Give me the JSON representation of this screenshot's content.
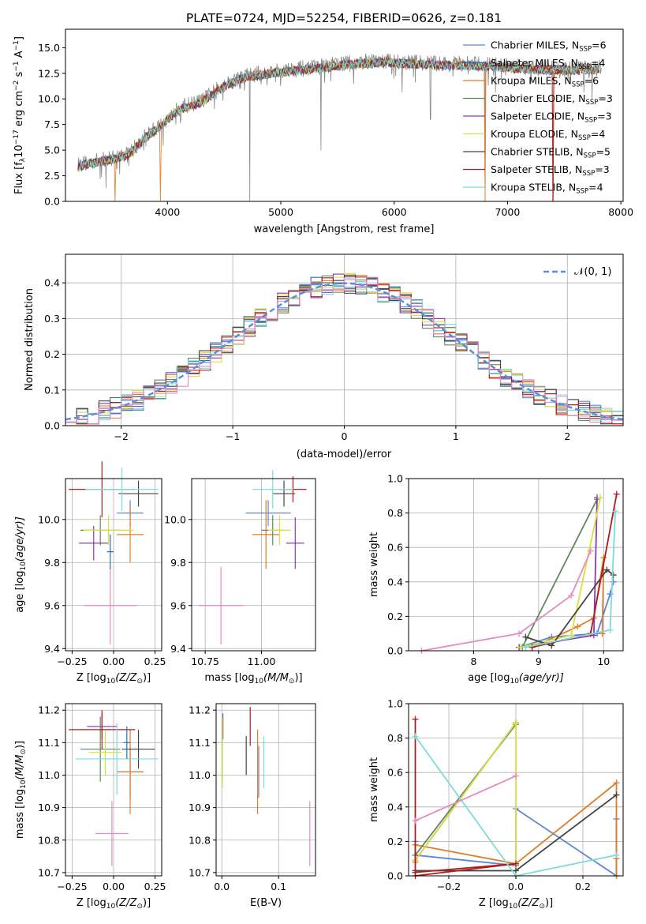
{
  "title": "PLATE=0724, MJD=52254, FIBERID=0626, z=0.181",
  "colors": {
    "chabrier_miles": "#5b86d6",
    "salpeter_miles": "#2a6fb0",
    "kroupa_miles": "#e07b26",
    "chabrier_elodie": "#5c8a5c",
    "salpeter_elodie": "#8e3aad",
    "kroupa_elodie": "#d9e03c",
    "chabrier_stelib": "#444444",
    "salpeter_stelib": "#b01c1c",
    "kroupa_stelib": "#7fdada",
    "pink": "#e68ac0",
    "data": "#888888",
    "normal": "#5b8fd9"
  },
  "legend": {
    "labels": [
      "Chabrier MILES, N",
      "Salpeter MILES, N",
      "Kroupa MILES, N",
      "Chabrier ELODIE, N",
      "Salpeter ELODIE, N",
      "Kroupa ELODIE, N",
      "Chabrier STELIB, N",
      "Salpeter STELIB, N",
      "Kroupa STELIB, N"
    ],
    "sub": "SSP",
    "counts": [
      "=6",
      "=4",
      "=6",
      "=3",
      "=3",
      "=4",
      "=5",
      "=3",
      "=4"
    ],
    "normal_label": "𝒩(0, 1)"
  },
  "chart_data": [
    {
      "id": "spectrum",
      "type": "line",
      "title": "PLATE=0724, MJD=52254, FIBERID=0626, z=0.181",
      "xlabel": "wavelength [Angstrom, rest frame]",
      "ylabel_main": "Flux [f",
      "ylabel_sub": "λ",
      "ylabel_rest": "10",
      "ylabel_exp": "−17",
      "ylabel_units": " erg cm",
      "ylabel_exp2": "−2",
      "ylabel_s": " s",
      "ylabel_exp3": "−1",
      "ylabel_A": " A",
      "ylabel_exp4": "−1",
      "ylabel_end": "]",
      "xlim": [
        3100,
        8020
      ],
      "ylim": [
        0,
        16.8
      ],
      "xticks": [
        4000,
        5000,
        6000,
        7000,
        8000
      ],
      "yticks": [
        0.0,
        2.5,
        5.0,
        7.5,
        10.0,
        12.5,
        15.0
      ],
      "xrange_data": [
        3210,
        7830
      ],
      "continuum": [
        [
          3210,
          3.6
        ],
        [
          3450,
          4.1
        ],
        [
          3650,
          4.6
        ],
        [
          3800,
          6.3
        ],
        [
          3950,
          7.6
        ],
        [
          4100,
          9.1
        ],
        [
          4300,
          9.8
        ],
        [
          4500,
          11.4
        ],
        [
          4700,
          12.3
        ],
        [
          4900,
          12.6
        ],
        [
          5100,
          12.9
        ],
        [
          5300,
          13.1
        ],
        [
          5500,
          13.4
        ],
        [
          5700,
          13.6
        ],
        [
          5900,
          13.7
        ],
        [
          6100,
          13.6
        ],
        [
          6300,
          13.5
        ],
        [
          6500,
          13.4
        ],
        [
          6700,
          13.4
        ],
        [
          6900,
          13.3
        ],
        [
          7100,
          13.1
        ],
        [
          7300,
          13.0
        ],
        [
          7500,
          12.9
        ],
        [
          7700,
          13.0
        ],
        [
          7830,
          13.0
        ]
      ],
      "spikes_down": [
        [
          4725,
          0.0
        ],
        [
          5355,
          5.0
        ],
        [
          6320,
          8.0
        ],
        [
          6802,
          0.0
        ],
        [
          7400,
          0.0
        ]
      ],
      "model_drops": [
        [
          3535,
          0.0
        ],
        [
          3935,
          0.0
        ],
        [
          6800,
          0.0
        ],
        [
          7400,
          0.0
        ]
      ]
    },
    {
      "id": "residuals",
      "type": "area",
      "xlabel": "(data-model)/error",
      "ylabel": "Normed distribution",
      "xlim": [
        -2.5,
        2.5
      ],
      "ylim": [
        0,
        0.48
      ],
      "xticks": [
        -2,
        -1,
        0,
        1,
        2
      ],
      "yticks": [
        0.0,
        0.1,
        0.2,
        0.3,
        0.4
      ],
      "bin_width": 0.1,
      "grid": true
    },
    {
      "id": "age_vs_Z",
      "type": "scatter",
      "xlabel": "Z [log",
      "xlabel_sub": "10",
      "xlabel_rest": "(Z/Z",
      "xlabel_end": ")]",
      "ylabel": "age  [log",
      "ylabel_sub": "10",
      "ylabel_rest": "(age/yr)]",
      "xlim": [
        -0.29,
        0.29
      ],
      "ylim": [
        9.39,
        10.19
      ],
      "xticks": [
        -0.25,
        0.0,
        0.25
      ],
      "xticklabels": [
        "−0.25",
        "0.00",
        "0.25"
      ],
      "yticks": [
        9.4,
        9.6,
        9.8,
        10.0
      ],
      "points": [
        {
          "series": 0,
          "x": 0.1,
          "xerr": 0.08,
          "y": 10.03,
          "yerr": 0.06
        },
        {
          "series": 2,
          "x": 0.1,
          "xerr": 0.08,
          "y": 9.93,
          "yerr": 0.13
        },
        {
          "series": 3,
          "x": -0.08,
          "xerr": 0.12,
          "y": 9.95,
          "yerr": 0.07
        },
        {
          "series": 4,
          "x": -0.12,
          "xerr": 0.09,
          "y": 9.89,
          "yerr": 0.08
        },
        {
          "series": 5,
          "x": -0.03,
          "xerr": 0.15,
          "y": 9.95,
          "yerr": 0.07
        },
        {
          "series": 6,
          "x": 0.15,
          "xerr": 0.12,
          "y": 10.12,
          "yerr": 0.06
        },
        {
          "series": 7,
          "x": -0.07,
          "xerr": 0.2,
          "y": 10.14,
          "yerr": 0.13
        },
        {
          "series": 8,
          "x": 0.05,
          "xerr": 0.22,
          "y": 10.14,
          "yerr": 0.1
        },
        {
          "series": 9,
          "x": -0.02,
          "xerr": 0.16,
          "y": 9.6,
          "yerr": 0.18
        },
        {
          "series": 1,
          "x": -0.02,
          "xerr": 0.02,
          "y": 9.85,
          "yerr": 0.08
        }
      ]
    },
    {
      "id": "age_vs_mass",
      "type": "scatter",
      "xlabel": "mass [log",
      "xlabel_sub": "10",
      "xlabel_rest": "(M/M",
      "xlabel_end": ")]",
      "xlim": [
        10.69,
        11.24
      ],
      "ylim": [
        9.39,
        10.19
      ],
      "xticks": [
        10.75,
        11.0
      ],
      "xticklabels": [
        "10.75",
        "11.00"
      ],
      "yticks": [
        9.4,
        9.6,
        9.8,
        10.0
      ],
      "points": [
        {
          "series": 0,
          "x": 11.03,
          "xerr": 0.1,
          "y": 10.03,
          "yerr": 0.06
        },
        {
          "series": 2,
          "x": 11.02,
          "xerr": 0.06,
          "y": 9.93,
          "yerr": 0.16
        },
        {
          "series": 3,
          "x": 11.05,
          "xerr": 0.05,
          "y": 9.95,
          "yerr": 0.07
        },
        {
          "series": 4,
          "x": 11.15,
          "xerr": 0.04,
          "y": 9.89,
          "yerr": 0.12
        },
        {
          "series": 5,
          "x": 11.08,
          "xerr": 0.05,
          "y": 9.95,
          "yerr": 0.07
        },
        {
          "series": 6,
          "x": 11.1,
          "xerr": 0.05,
          "y": 10.12,
          "yerr": 0.06
        },
        {
          "series": 7,
          "x": 11.14,
          "xerr": 0.06,
          "y": 10.14,
          "yerr": 0.06
        },
        {
          "series": 8,
          "x": 11.05,
          "xerr": 0.09,
          "y": 10.14,
          "yerr": 0.09
        },
        {
          "series": 9,
          "x": 10.82,
          "xerr": 0.1,
          "y": 9.6,
          "yerr": 0.18
        }
      ]
    },
    {
      "id": "weight_vs_age",
      "type": "line",
      "xlabel": "age  [log",
      "xlabel_sub": "10",
      "xlabel_rest": "(age/yr)]",
      "ylabel": "mass weight",
      "xlim": [
        7.0,
        10.3
      ],
      "ylim": [
        0,
        1.0
      ],
      "xticks": [
        8,
        9,
        10
      ],
      "yticks": [
        0.0,
        0.2,
        0.4,
        0.6,
        0.8,
        1.0
      ],
      "series": [
        {
          "color": 0,
          "pts": [
            [
              8.7,
              0.02
            ],
            [
              9.2,
              0.08
            ],
            [
              9.9,
              0.1
            ],
            [
              10.1,
              0.33
            ],
            [
              10.15,
              0.4
            ]
          ]
        },
        {
          "color": 2,
          "pts": [
            [
              8.9,
              0.02
            ],
            [
              9.6,
              0.14
            ],
            [
              9.85,
              0.19
            ],
            [
              10.0,
              0.54
            ],
            [
              9.98,
              0.1
            ]
          ]
        },
        {
          "color": 3,
          "pts": [
            [
              8.75,
              0.02
            ],
            [
              9.9,
              0.88
            ]
          ]
        },
        {
          "color": 4,
          "pts": [
            [
              8.7,
              0.02
            ],
            [
              9.85,
              0.09
            ],
            [
              9.9,
              0.89
            ]
          ]
        },
        {
          "color": 5,
          "pts": [
            [
              8.72,
              0.02
            ],
            [
              9.5,
              0.09
            ],
            [
              9.95,
              0.89
            ]
          ]
        },
        {
          "color": 6,
          "pts": [
            [
              8.8,
              0.08
            ],
            [
              9.2,
              0.03
            ],
            [
              10.05,
              0.47
            ],
            [
              10.15,
              0.44
            ]
          ]
        },
        {
          "color": 7,
          "pts": [
            [
              8.9,
              0.02
            ],
            [
              9.8,
              0.1
            ],
            [
              10.2,
              0.91
            ]
          ]
        },
        {
          "color": 8,
          "pts": [
            [
              8.8,
              0.02
            ],
            [
              10.1,
              0.12
            ],
            [
              10.18,
              0.81
            ]
          ]
        },
        {
          "color": 9,
          "pts": [
            [
              7.2,
              0.0
            ],
            [
              8.7,
              0.1
            ],
            [
              9.5,
              0.32
            ],
            [
              9.8,
              0.58
            ]
          ]
        }
      ]
    },
    {
      "id": "mass_vs_Z",
      "type": "scatter",
      "xlabel": "Z [log",
      "xlabel_sub": "10",
      "xlabel_rest": "(Z/Z",
      "xlabel_end": ")]",
      "ylabel": "mass [log",
      "ylabel_sub": "10",
      "ylabel_rest": "(M/M",
      "ylabel_end": ")]",
      "xlim": [
        -0.29,
        0.29
      ],
      "ylim": [
        10.69,
        11.22
      ],
      "xticks": [
        -0.25,
        0.0,
        0.25
      ],
      "xticklabels": [
        "−0.25",
        "0.00",
        "0.25"
      ],
      "yticks": [
        10.7,
        10.8,
        10.9,
        11.0,
        11.1,
        11.2
      ],
      "points": [
        {
          "series": 0,
          "x": 0.1,
          "xerr": 0.08,
          "y": 11.01,
          "yerr": 0.08
        },
        {
          "series": 2,
          "x": 0.1,
          "xerr": 0.08,
          "y": 11.01,
          "yerr": 0.13
        },
        {
          "series": 3,
          "x": -0.08,
          "xerr": 0.12,
          "y": 11.08,
          "yerr": 0.1
        },
        {
          "series": 4,
          "x": -0.07,
          "xerr": 0.09,
          "y": 11.15,
          "yerr": 0.04
        },
        {
          "series": 5,
          "x": -0.05,
          "xerr": 0.1,
          "y": 11.07,
          "yerr": 0.07
        },
        {
          "series": 6,
          "x": 0.15,
          "xerr": 0.1,
          "y": 11.08,
          "yerr": 0.06
        },
        {
          "series": 7,
          "x": -0.07,
          "xerr": 0.2,
          "y": 11.14,
          "yerr": 0.06
        },
        {
          "series": 8,
          "x": 0.02,
          "xerr": 0.25,
          "y": 11.05,
          "yerr": 0.11
        },
        {
          "series": 9,
          "x": -0.01,
          "xerr": 0.1,
          "y": 10.82,
          "yerr": 0.1
        },
        {
          "series": 1,
          "x": 0.08,
          "xerr": 0.02,
          "y": 11.1,
          "yerr": 0.05
        }
      ]
    },
    {
      "id": "mass_vs_ebv",
      "type": "scatter",
      "xlabel": "E(B-V)",
      "xlim": [
        -0.01,
        0.165
      ],
      "ylim": [
        10.69,
        11.22
      ],
      "xticks": [
        0.0,
        0.1
      ],
      "xticklabels": [
        "0.0",
        "0.1"
      ],
      "yticks": [
        10.7,
        10.8,
        10.9,
        11.0,
        11.1,
        11.2
      ],
      "points": [
        {
          "series": 0,
          "x": 0.065,
          "xerr": 0.0,
          "y": 11.01,
          "yerr": 0.08
        },
        {
          "series": 2,
          "x": 0.063,
          "xerr": 0.0,
          "y": 11.01,
          "yerr": 0.13
        },
        {
          "series": 3,
          "x": 0.001,
          "xerr": 0.0,
          "y": 11.08,
          "yerr": 0.1
        },
        {
          "series": 4,
          "x": 0.002,
          "xerr": 0.0,
          "y": 11.15,
          "yerr": 0.04
        },
        {
          "series": 5,
          "x": 0.001,
          "xerr": 0.0,
          "y": 11.07,
          "yerr": 0.11
        },
        {
          "series": 6,
          "x": 0.043,
          "xerr": 0.0,
          "y": 11.06,
          "yerr": 0.06
        },
        {
          "series": 7,
          "x": 0.05,
          "xerr": 0.0,
          "y": 11.15,
          "yerr": 0.06
        },
        {
          "series": 8,
          "x": 0.074,
          "xerr": 0.0,
          "y": 11.04,
          "yerr": 0.08
        },
        {
          "series": 9,
          "x": 0.155,
          "xerr": 0.0,
          "y": 10.82,
          "yerr": 0.1
        }
      ]
    },
    {
      "id": "weight_vs_Z",
      "type": "line",
      "xlabel": "Z [log",
      "xlabel_sub": "10",
      "xlabel_rest": "(Z/Z",
      "xlabel_end": ")]",
      "ylabel": "mass weight",
      "xlim": [
        -0.32,
        0.32
      ],
      "ylim": [
        0,
        1.0
      ],
      "xticks": [
        -0.2,
        0.0,
        0.2
      ],
      "xticklabels": [
        "−0.2",
        "0.0",
        "0.2"
      ],
      "yticks": [
        0.0,
        0.2,
        0.4,
        0.6,
        0.8,
        1.0
      ],
      "series": [
        {
          "color": 0,
          "pts": [
            [
              -0.3,
              0.2
            ],
            [
              -0.3,
              0.12
            ],
            [
              0.0,
              0.06
            ],
            [
              0.0,
              0.39
            ],
            [
              0.3,
              0.0
            ],
            [
              0.3,
              0.33
            ]
          ]
        },
        {
          "color": 2,
          "pts": [
            [
              -0.3,
              0.08
            ],
            [
              -0.3,
              0.18
            ],
            [
              0.0,
              0.07
            ],
            [
              0.3,
              0.54
            ],
            [
              0.3,
              0.0
            ],
            [
              0.3,
              0.1
            ]
          ]
        },
        {
          "color": 3,
          "pts": [
            [
              -0.3,
              0.12
            ],
            [
              0.0,
              0.88
            ]
          ]
        },
        {
          "color": 4,
          "pts": [
            [
              -0.3,
              0.09
            ],
            [
              0.0,
              0.89
            ]
          ]
        },
        {
          "color": 5,
          "pts": [
            [
              -0.3,
              0.09
            ],
            [
              0.0,
              0.89
            ],
            [
              0.0,
              0.0
            ]
          ]
        },
        {
          "color": 6,
          "pts": [
            [
              -0.3,
              0.03
            ],
            [
              0.0,
              0.03
            ],
            [
              0.3,
              0.47
            ]
          ]
        },
        {
          "color": 7,
          "pts": [
            [
              -0.3,
              0.91
            ],
            [
              -0.3,
              0.0
            ],
            [
              0.0,
              0.07
            ],
            [
              -0.3,
              0.02
            ]
          ]
        },
        {
          "color": 8,
          "pts": [
            [
              -0.3,
              0.81
            ],
            [
              0.0,
              0.0
            ],
            [
              0.3,
              0.12
            ]
          ]
        },
        {
          "color": 9,
          "pts": [
            [
              -0.3,
              0.32
            ],
            [
              0.0,
              0.58
            ]
          ]
        }
      ]
    }
  ]
}
